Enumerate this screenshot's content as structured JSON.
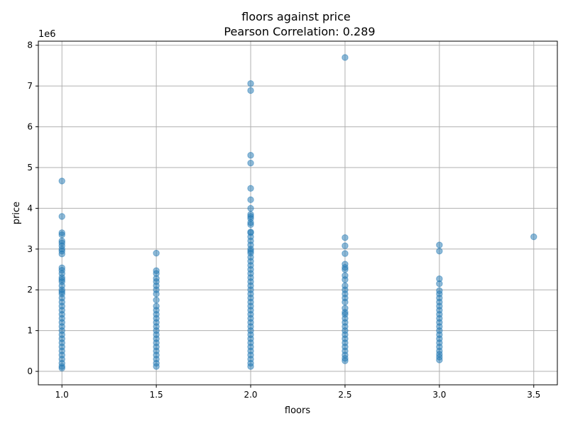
{
  "chart_data": {
    "type": "scatter",
    "title": "floors against price",
    "subtitle": "Pearson Correlation: 0.289",
    "xlabel": "floors",
    "ylabel": "price",
    "y_offset_label": "1e6",
    "xlim": [
      0.875,
      3.625
    ],
    "ylim": [
      -330000,
      8100000
    ],
    "x_ticks": [
      1.0,
      1.5,
      2.0,
      2.5,
      3.0,
      3.5
    ],
    "x_tick_labels": [
      "1.0",
      "1.5",
      "2.0",
      "2.5",
      "3.0",
      "3.5"
    ],
    "y_ticks": [
      0,
      1000000,
      2000000,
      3000000,
      4000000,
      5000000,
      6000000,
      7000000,
      8000000
    ],
    "y_tick_labels": [
      "0",
      "1",
      "2",
      "3",
      "4",
      "5",
      "6",
      "7",
      "8"
    ],
    "grid": true,
    "marker_color": "#1f77b4",
    "marker_alpha": 0.5,
    "points": [
      {
        "x": 1.0,
        "y": 4670000
      },
      {
        "x": 1.0,
        "y": 3800000
      },
      {
        "x": 1.0,
        "y": 3400000
      },
      {
        "x": 1.0,
        "y": 3350000
      },
      {
        "x": 1.0,
        "y": 3200000
      },
      {
        "x": 1.0,
        "y": 3150000
      },
      {
        "x": 1.0,
        "y": 3080000
      },
      {
        "x": 1.0,
        "y": 3000000
      },
      {
        "x": 1.0,
        "y": 2950000
      },
      {
        "x": 1.0,
        "y": 2880000
      },
      {
        "x": 1.0,
        "y": 2540000
      },
      {
        "x": 1.0,
        "y": 2480000
      },
      {
        "x": 1.0,
        "y": 2400000
      },
      {
        "x": 1.0,
        "y": 2300000
      },
      {
        "x": 1.0,
        "y": 2250000
      },
      {
        "x": 1.0,
        "y": 2200000
      },
      {
        "x": 1.0,
        "y": 2100000
      },
      {
        "x": 1.0,
        "y": 2000000
      },
      {
        "x": 1.0,
        "y": 1950000
      },
      {
        "x": 1.0,
        "y": 1900000
      },
      {
        "x": 1.0,
        "y": 1800000
      },
      {
        "x": 1.0,
        "y": 1700000
      },
      {
        "x": 1.0,
        "y": 1600000
      },
      {
        "x": 1.0,
        "y": 1500000
      },
      {
        "x": 1.0,
        "y": 1400000
      },
      {
        "x": 1.0,
        "y": 1300000
      },
      {
        "x": 1.0,
        "y": 1200000
      },
      {
        "x": 1.0,
        "y": 1100000
      },
      {
        "x": 1.0,
        "y": 1000000
      },
      {
        "x": 1.0,
        "y": 900000
      },
      {
        "x": 1.0,
        "y": 800000
      },
      {
        "x": 1.0,
        "y": 700000
      },
      {
        "x": 1.0,
        "y": 600000
      },
      {
        "x": 1.0,
        "y": 500000
      },
      {
        "x": 1.0,
        "y": 400000
      },
      {
        "x": 1.0,
        "y": 300000
      },
      {
        "x": 1.0,
        "y": 200000
      },
      {
        "x": 1.0,
        "y": 120000
      },
      {
        "x": 1.0,
        "y": 80000
      },
      {
        "x": 1.5,
        "y": 2900000
      },
      {
        "x": 1.5,
        "y": 2470000
      },
      {
        "x": 1.5,
        "y": 2400000
      },
      {
        "x": 1.5,
        "y": 2280000
      },
      {
        "x": 1.5,
        "y": 2200000
      },
      {
        "x": 1.5,
        "y": 2100000
      },
      {
        "x": 1.5,
        "y": 2000000
      },
      {
        "x": 1.5,
        "y": 1900000
      },
      {
        "x": 1.5,
        "y": 1750000
      },
      {
        "x": 1.5,
        "y": 1600000
      },
      {
        "x": 1.5,
        "y": 1500000
      },
      {
        "x": 1.5,
        "y": 1400000
      },
      {
        "x": 1.5,
        "y": 1300000
      },
      {
        "x": 1.5,
        "y": 1200000
      },
      {
        "x": 1.5,
        "y": 1100000
      },
      {
        "x": 1.5,
        "y": 1000000
      },
      {
        "x": 1.5,
        "y": 900000
      },
      {
        "x": 1.5,
        "y": 800000
      },
      {
        "x": 1.5,
        "y": 700000
      },
      {
        "x": 1.5,
        "y": 600000
      },
      {
        "x": 1.5,
        "y": 500000
      },
      {
        "x": 1.5,
        "y": 400000
      },
      {
        "x": 1.5,
        "y": 300000
      },
      {
        "x": 1.5,
        "y": 200000
      },
      {
        "x": 1.5,
        "y": 120000
      },
      {
        "x": 2.0,
        "y": 7060000
      },
      {
        "x": 2.0,
        "y": 6890000
      },
      {
        "x": 2.0,
        "y": 5300000
      },
      {
        "x": 2.0,
        "y": 5110000
      },
      {
        "x": 2.0,
        "y": 4490000
      },
      {
        "x": 2.0,
        "y": 4210000
      },
      {
        "x": 2.0,
        "y": 4000000
      },
      {
        "x": 2.0,
        "y": 3850000
      },
      {
        "x": 2.0,
        "y": 3800000
      },
      {
        "x": 2.0,
        "y": 3750000
      },
      {
        "x": 2.0,
        "y": 3650000
      },
      {
        "x": 2.0,
        "y": 3600000
      },
      {
        "x": 2.0,
        "y": 3420000
      },
      {
        "x": 2.0,
        "y": 3400000
      },
      {
        "x": 2.0,
        "y": 3300000
      },
      {
        "x": 2.0,
        "y": 3200000
      },
      {
        "x": 2.0,
        "y": 3100000
      },
      {
        "x": 2.0,
        "y": 3000000
      },
      {
        "x": 2.0,
        "y": 2950000
      },
      {
        "x": 2.0,
        "y": 2900000
      },
      {
        "x": 2.0,
        "y": 2800000
      },
      {
        "x": 2.0,
        "y": 2700000
      },
      {
        "x": 2.0,
        "y": 2600000
      },
      {
        "x": 2.0,
        "y": 2500000
      },
      {
        "x": 2.0,
        "y": 2400000
      },
      {
        "x": 2.0,
        "y": 2300000
      },
      {
        "x": 2.0,
        "y": 2200000
      },
      {
        "x": 2.0,
        "y": 2100000
      },
      {
        "x": 2.0,
        "y": 2000000
      },
      {
        "x": 2.0,
        "y": 1900000
      },
      {
        "x": 2.0,
        "y": 1800000
      },
      {
        "x": 2.0,
        "y": 1700000
      },
      {
        "x": 2.0,
        "y": 1600000
      },
      {
        "x": 2.0,
        "y": 1500000
      },
      {
        "x": 2.0,
        "y": 1400000
      },
      {
        "x": 2.0,
        "y": 1300000
      },
      {
        "x": 2.0,
        "y": 1200000
      },
      {
        "x": 2.0,
        "y": 1100000
      },
      {
        "x": 2.0,
        "y": 1000000
      },
      {
        "x": 2.0,
        "y": 900000
      },
      {
        "x": 2.0,
        "y": 800000
      },
      {
        "x": 2.0,
        "y": 700000
      },
      {
        "x": 2.0,
        "y": 600000
      },
      {
        "x": 2.0,
        "y": 500000
      },
      {
        "x": 2.0,
        "y": 400000
      },
      {
        "x": 2.0,
        "y": 300000
      },
      {
        "x": 2.0,
        "y": 200000
      },
      {
        "x": 2.0,
        "y": 120000
      },
      {
        "x": 2.5,
        "y": 7700000
      },
      {
        "x": 2.5,
        "y": 3280000
      },
      {
        "x": 2.5,
        "y": 3080000
      },
      {
        "x": 2.5,
        "y": 2890000
      },
      {
        "x": 2.5,
        "y": 2630000
      },
      {
        "x": 2.5,
        "y": 2550000
      },
      {
        "x": 2.5,
        "y": 2500000
      },
      {
        "x": 2.5,
        "y": 2350000
      },
      {
        "x": 2.5,
        "y": 2250000
      },
      {
        "x": 2.5,
        "y": 2100000
      },
      {
        "x": 2.5,
        "y": 2000000
      },
      {
        "x": 2.5,
        "y": 1900000
      },
      {
        "x": 2.5,
        "y": 1800000
      },
      {
        "x": 2.5,
        "y": 1700000
      },
      {
        "x": 2.5,
        "y": 1550000
      },
      {
        "x": 2.5,
        "y": 1450000
      },
      {
        "x": 2.5,
        "y": 1400000
      },
      {
        "x": 2.5,
        "y": 1300000
      },
      {
        "x": 2.5,
        "y": 1200000
      },
      {
        "x": 2.5,
        "y": 1100000
      },
      {
        "x": 2.5,
        "y": 1000000
      },
      {
        "x": 2.5,
        "y": 900000
      },
      {
        "x": 2.5,
        "y": 800000
      },
      {
        "x": 2.5,
        "y": 700000
      },
      {
        "x": 2.5,
        "y": 600000
      },
      {
        "x": 2.5,
        "y": 500000
      },
      {
        "x": 2.5,
        "y": 400000
      },
      {
        "x": 2.5,
        "y": 320000
      },
      {
        "x": 2.5,
        "y": 260000
      },
      {
        "x": 3.0,
        "y": 3100000
      },
      {
        "x": 3.0,
        "y": 2950000
      },
      {
        "x": 3.0,
        "y": 2270000
      },
      {
        "x": 3.0,
        "y": 2150000
      },
      {
        "x": 3.0,
        "y": 1980000
      },
      {
        "x": 3.0,
        "y": 1900000
      },
      {
        "x": 3.0,
        "y": 1800000
      },
      {
        "x": 3.0,
        "y": 1700000
      },
      {
        "x": 3.0,
        "y": 1600000
      },
      {
        "x": 3.0,
        "y": 1500000
      },
      {
        "x": 3.0,
        "y": 1400000
      },
      {
        "x": 3.0,
        "y": 1300000
      },
      {
        "x": 3.0,
        "y": 1200000
      },
      {
        "x": 3.0,
        "y": 1100000
      },
      {
        "x": 3.0,
        "y": 1000000
      },
      {
        "x": 3.0,
        "y": 900000
      },
      {
        "x": 3.0,
        "y": 800000
      },
      {
        "x": 3.0,
        "y": 700000
      },
      {
        "x": 3.0,
        "y": 600000
      },
      {
        "x": 3.0,
        "y": 500000
      },
      {
        "x": 3.0,
        "y": 420000
      },
      {
        "x": 3.0,
        "y": 350000
      },
      {
        "x": 3.0,
        "y": 280000
      },
      {
        "x": 3.5,
        "y": 3300000
      }
    ]
  }
}
